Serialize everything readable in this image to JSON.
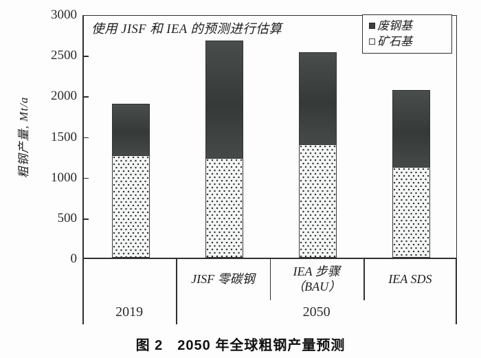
{
  "caption": "图 2　2050 年全球粗钢产量预测",
  "annotation": "使用 JISF 和 IEA 的预测进行估算",
  "legend": {
    "entries": [
      {
        "label": "废钢基",
        "marker": "filled"
      },
      {
        "label": "矿石基",
        "marker": "open"
      }
    ]
  },
  "colors": {
    "scrap_fill": "#3b403e",
    "ore_fill": "#f3f5f4",
    "dot": "#2b2b2b",
    "line": "#2f2f2f",
    "background": "#fdfdfd"
  },
  "chart_data": {
    "type": "bar",
    "stacked": true,
    "title": "",
    "ylabel": "粗钢产量, Mt/a",
    "xlabel": "",
    "ylim": [
      0,
      3000
    ],
    "yticks": [
      0,
      500,
      1000,
      1500,
      2000,
      2500,
      3000
    ],
    "grid": false,
    "legend_position": "top-right",
    "categories": [
      "2019",
      "JISF 零碳钢",
      "IEA 步骤（BAU）",
      "IEA SDS"
    ],
    "category_label_lines": [
      [
        ""
      ],
      [
        "JISF 零碳钢"
      ],
      [
        "IEA 步骤",
        "（BAU）"
      ],
      [
        "IEA SDS"
      ]
    ],
    "series": [
      {
        "name": "矿石基",
        "style": "dotted",
        "values": [
          1250,
          1220,
          1390,
          1110
        ]
      },
      {
        "name": "废钢基",
        "style": "solid-dark",
        "values": [
          640,
          1450,
          1140,
          950
        ]
      }
    ],
    "totals": [
      1890,
      2670,
      2530,
      2060
    ],
    "year_groups": [
      {
        "label": "2019",
        "start": 0,
        "span": 1
      },
      {
        "label": "2050",
        "start": 1,
        "span": 3
      }
    ],
    "annotation": "使用 JISF 和 IEA 的预测进行估算"
  }
}
